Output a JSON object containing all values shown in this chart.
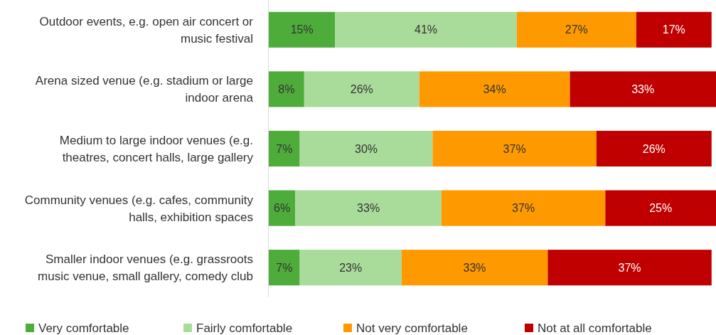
{
  "chart_data": {
    "type": "bar",
    "orientation": "horizontal",
    "stacked": true,
    "legend": "bottom",
    "tick_labels": "y",
    "xlim": [
      0,
      101
    ],
    "categories": [
      "Outdoor events, e.g. open air concert or music festival",
      "Arena sized venue (e.g. stadium or large indoor arena",
      "Medium to large indoor venues (e.g. theatres, concert halls, large gallery",
      "Community venues (e.g. cafes, community halls, exhibition spaces",
      "Smaller indoor venues (e.g. grassroots music venue, small gallery, comedy club"
    ],
    "series": [
      {
        "name": "Very comfortable",
        "color": "#4eac3a",
        "values": [
          15,
          8,
          7,
          6,
          7
        ],
        "value_labels": [
          "15%",
          "8%",
          "7%",
          "6%",
          "7%"
        ]
      },
      {
        "name": "Fairly comfortable",
        "color": "#a9dc9b",
        "values": [
          41,
          26,
          30,
          33,
          23
        ],
        "value_labels": [
          "41%",
          "26%",
          "30%",
          "33%",
          "23%"
        ]
      },
      {
        "name": "Not very comfortable",
        "color": "#ff9900",
        "values": [
          27,
          34,
          37,
          37,
          33
        ],
        "value_labels": [
          "27%",
          "34%",
          "37%",
          "37%",
          "33%"
        ]
      },
      {
        "name": "Not at all comfortable",
        "color": "#c00000",
        "values": [
          17,
          33,
          26,
          25,
          37
        ],
        "value_labels": [
          "17%",
          "33%",
          "26%",
          "25%",
          "37%"
        ]
      }
    ]
  }
}
